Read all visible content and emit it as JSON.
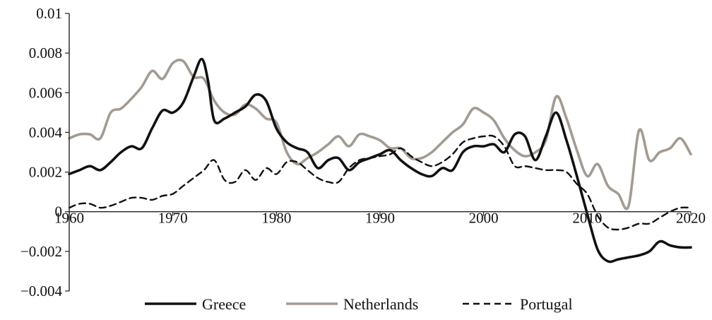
{
  "chart_data": {
    "type": "line",
    "title": "",
    "xlabel": "",
    "ylabel": "",
    "xlim": [
      1960,
      2020
    ],
    "ylim": [
      -0.004,
      0.01
    ],
    "x_ticks": [
      "1960",
      "1970",
      "1980",
      "1990",
      "2000",
      "2010",
      "2020"
    ],
    "x_tick_values": [
      1960,
      1970,
      1980,
      1990,
      2000,
      2010,
      2020
    ],
    "y_ticks": [
      "0.01",
      "0.008",
      "0.006",
      "0.004",
      "0.002",
      "0",
      "−0.002",
      "−0.004"
    ],
    "y_tick_values": [
      0.01,
      0.008,
      0.006,
      0.004,
      0.002,
      0,
      -0.002,
      -0.004
    ],
    "grid": false,
    "legend_position": "bottom",
    "series": [
      {
        "name": "Greece",
        "color": "#111111",
        "style": "solid",
        "points": [
          [
            1960,
            0.0019
          ],
          [
            1961,
            0.0021
          ],
          [
            1962,
            0.0023
          ],
          [
            1963,
            0.0021
          ],
          [
            1964,
            0.0025
          ],
          [
            1965,
            0.003
          ],
          [
            1966,
            0.0033
          ],
          [
            1967,
            0.0032
          ],
          [
            1968,
            0.0042
          ],
          [
            1969,
            0.0051
          ],
          [
            1970,
            0.005
          ],
          [
            1971,
            0.0055
          ],
          [
            1972,
            0.0068
          ],
          [
            1972.8,
            0.0077
          ],
          [
            1973.4,
            0.0066
          ],
          [
            1974,
            0.0046
          ],
          [
            1975,
            0.0047
          ],
          [
            1976,
            0.005
          ],
          [
            1977,
            0.0053
          ],
          [
            1978,
            0.0059
          ],
          [
            1979,
            0.0056
          ],
          [
            1980,
            0.0042
          ],
          [
            1981,
            0.0035
          ],
          [
            1982,
            0.0032
          ],
          [
            1983,
            0.003
          ],
          [
            1984,
            0.0022
          ],
          [
            1985,
            0.0026
          ],
          [
            1986,
            0.0027
          ],
          [
            1987,
            0.0021
          ],
          [
            1988,
            0.0025
          ],
          [
            1989,
            0.0027
          ],
          [
            1990,
            0.0029
          ],
          [
            1991,
            0.0031
          ],
          [
            1992,
            0.0026
          ],
          [
            1993,
            0.0022
          ],
          [
            1994,
            0.0019
          ],
          [
            1995,
            0.0018
          ],
          [
            1996,
            0.0022
          ],
          [
            1997,
            0.0021
          ],
          [
            1998,
            0.003
          ],
          [
            1999,
            0.0033
          ],
          [
            2000,
            0.0033
          ],
          [
            2001,
            0.0034
          ],
          [
            2002,
            0.003
          ],
          [
            2003,
            0.0039
          ],
          [
            2004,
            0.0038
          ],
          [
            2005,
            0.0026
          ],
          [
            2006,
            0.0038
          ],
          [
            2007,
            0.005
          ],
          [
            2008,
            0.0036
          ],
          [
            2009,
            0.0018
          ],
          [
            2010,
            -0.0001
          ],
          [
            2011,
            -0.0019
          ],
          [
            2012,
            -0.0025
          ],
          [
            2013,
            -0.0024
          ],
          [
            2014,
            -0.0023
          ],
          [
            2015,
            -0.0022
          ],
          [
            2016,
            -0.002
          ],
          [
            2017,
            -0.0015
          ],
          [
            2018,
            -0.0017
          ],
          [
            2019,
            -0.0018
          ],
          [
            2020,
            -0.0018
          ]
        ]
      },
      {
        "name": "Netherlands",
        "color": "#a39a92",
        "style": "solid",
        "points": [
          [
            1960,
            0.0037
          ],
          [
            1961,
            0.0039
          ],
          [
            1962,
            0.0039
          ],
          [
            1963,
            0.0037
          ],
          [
            1964,
            0.005
          ],
          [
            1965,
            0.0052
          ],
          [
            1966,
            0.0057
          ],
          [
            1967,
            0.0063
          ],
          [
            1968,
            0.0071
          ],
          [
            1969,
            0.0067
          ],
          [
            1970,
            0.0075
          ],
          [
            1971,
            0.0076
          ],
          [
            1972,
            0.0068
          ],
          [
            1973,
            0.0067
          ],
          [
            1974,
            0.0056
          ],
          [
            1975,
            0.005
          ],
          [
            1976,
            0.0049
          ],
          [
            1977,
            0.0054
          ],
          [
            1978,
            0.0052
          ],
          [
            1979,
            0.0047
          ],
          [
            1980,
            0.0045
          ],
          [
            1981,
            0.003
          ],
          [
            1982,
            0.0024
          ],
          [
            1983,
            0.0027
          ],
          [
            1984,
            0.003
          ],
          [
            1985,
            0.0034
          ],
          [
            1986,
            0.0038
          ],
          [
            1987,
            0.0033
          ],
          [
            1988,
            0.0039
          ],
          [
            1989,
            0.0038
          ],
          [
            1990,
            0.0036
          ],
          [
            1991,
            0.0032
          ],
          [
            1992,
            0.0032
          ],
          [
            1993,
            0.0027
          ],
          [
            1994,
            0.0027
          ],
          [
            1995,
            0.003
          ],
          [
            1996,
            0.0035
          ],
          [
            1997,
            0.004
          ],
          [
            1998,
            0.0044
          ],
          [
            1999,
            0.0052
          ],
          [
            2000,
            0.005
          ],
          [
            2001,
            0.0046
          ],
          [
            2002,
            0.0037
          ],
          [
            2003,
            0.0031
          ],
          [
            2004,
            0.0028
          ],
          [
            2005,
            0.003
          ],
          [
            2006,
            0.0036
          ],
          [
            2007,
            0.0058
          ],
          [
            2008,
            0.0047
          ],
          [
            2009,
            0.0031
          ],
          [
            2010,
            0.0018
          ],
          [
            2011,
            0.0024
          ],
          [
            2012,
            0.0013
          ],
          [
            2013,
            0.0009
          ],
          [
            2014,
            0.0003
          ],
          [
            2015,
            0.0041
          ],
          [
            2016,
            0.0026
          ],
          [
            2017,
            0.003
          ],
          [
            2018,
            0.0032
          ],
          [
            2019,
            0.0037
          ],
          [
            2020,
            0.0029
          ]
        ]
      },
      {
        "name": "Portugal",
        "color": "#111111",
        "style": "dashed",
        "points": [
          [
            1960,
            0.0002
          ],
          [
            1961,
            0.0004
          ],
          [
            1962,
            0.0004
          ],
          [
            1963,
            0.0002
          ],
          [
            1964,
            0.0003
          ],
          [
            1965,
            0.0005
          ],
          [
            1966,
            0.0007
          ],
          [
            1967,
            0.0007
          ],
          [
            1968,
            0.0006
          ],
          [
            1969,
            0.0008
          ],
          [
            1970,
            0.0009
          ],
          [
            1971,
            0.0013
          ],
          [
            1972,
            0.0017
          ],
          [
            1973,
            0.0021
          ],
          [
            1974,
            0.0026
          ],
          [
            1975,
            0.0016
          ],
          [
            1976,
            0.0015
          ],
          [
            1977,
            0.0021
          ],
          [
            1978,
            0.0016
          ],
          [
            1979,
            0.0022
          ],
          [
            1980,
            0.0019
          ],
          [
            1981,
            0.0025
          ],
          [
            1982,
            0.0025
          ],
          [
            1983,
            0.0021
          ],
          [
            1984,
            0.0017
          ],
          [
            1985,
            0.0015
          ],
          [
            1986,
            0.0015
          ],
          [
            1987,
            0.0022
          ],
          [
            1988,
            0.0026
          ],
          [
            1989,
            0.0027
          ],
          [
            1990,
            0.0028
          ],
          [
            1991,
            0.0029
          ],
          [
            1992,
            0.0032
          ],
          [
            1993,
            0.0028
          ],
          [
            1994,
            0.0025
          ],
          [
            1995,
            0.0023
          ],
          [
            1996,
            0.0025
          ],
          [
            1997,
            0.0029
          ],
          [
            1998,
            0.0035
          ],
          [
            1999,
            0.0037
          ],
          [
            2000,
            0.0038
          ],
          [
            2001,
            0.0038
          ],
          [
            2002,
            0.0033
          ],
          [
            2003,
            0.0023
          ],
          [
            2004,
            0.0023
          ],
          [
            2005,
            0.0022
          ],
          [
            2006,
            0.0021
          ],
          [
            2007,
            0.0021
          ],
          [
            2008,
            0.002
          ],
          [
            2009,
            0.0014
          ],
          [
            2010,
            0.0009
          ],
          [
            2011,
            -0.0002
          ],
          [
            2012,
            -0.0008
          ],
          [
            2013,
            -0.0009
          ],
          [
            2014,
            -0.0008
          ],
          [
            2015,
            -0.0006
          ],
          [
            2016,
            -0.0006
          ],
          [
            2017,
            -0.0003
          ],
          [
            2018,
            0
          ],
          [
            2019,
            0.0002
          ],
          [
            2020,
            0.0002
          ]
        ]
      }
    ]
  }
}
